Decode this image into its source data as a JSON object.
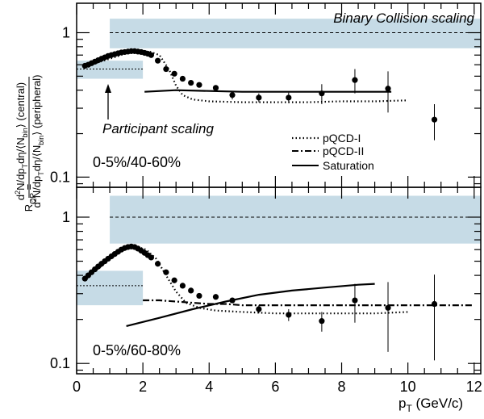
{
  "chart_data": [
    {
      "type": "scatter",
      "panel_label": "0-5%/40-60%",
      "xlim": [
        0,
        12.2
      ],
      "ylim": [
        0.085,
        1.6
      ],
      "yscale": "log",
      "yticks": [
        {
          "v": 0.1,
          "label": "0.1"
        },
        {
          "v": 1,
          "label": "1"
        }
      ],
      "binary_band": {
        "x": [
          1.0,
          12.2
        ],
        "y": [
          0.78,
          1.25
        ],
        "line": 1.0,
        "color": "#c6dbe6"
      },
      "participant_band": {
        "x": [
          0.15,
          2.0
        ],
        "y": [
          0.48,
          0.64
        ],
        "line": 0.56,
        "color": "#c6dbe6"
      },
      "annotations": {
        "binary": "Binary Collision scaling",
        "participant": "Participant scaling"
      },
      "legend": [
        "pQCD-I",
        "pQCD-II",
        "Saturation"
      ],
      "points": [
        {
          "x": 0.25,
          "y": 0.59
        },
        {
          "x": 0.35,
          "y": 0.6
        },
        {
          "x": 0.45,
          "y": 0.615
        },
        {
          "x": 0.55,
          "y": 0.63
        },
        {
          "x": 0.65,
          "y": 0.645
        },
        {
          "x": 0.75,
          "y": 0.66
        },
        {
          "x": 0.85,
          "y": 0.675
        },
        {
          "x": 0.95,
          "y": 0.69
        },
        {
          "x": 1.05,
          "y": 0.7
        },
        {
          "x": 1.15,
          "y": 0.71
        },
        {
          "x": 1.25,
          "y": 0.72
        },
        {
          "x": 1.35,
          "y": 0.73
        },
        {
          "x": 1.45,
          "y": 0.735
        },
        {
          "x": 1.55,
          "y": 0.74
        },
        {
          "x": 1.65,
          "y": 0.745
        },
        {
          "x": 1.75,
          "y": 0.745
        },
        {
          "x": 1.85,
          "y": 0.74
        },
        {
          "x": 1.95,
          "y": 0.735
        },
        {
          "x": 2.05,
          "y": 0.725
        },
        {
          "x": 2.15,
          "y": 0.715
        },
        {
          "x": 2.25,
          "y": 0.7
        },
        {
          "x": 2.45,
          "y": 0.64
        },
        {
          "x": 2.7,
          "y": 0.56
        },
        {
          "x": 2.95,
          "y": 0.52
        },
        {
          "x": 3.2,
          "y": 0.48
        },
        {
          "x": 3.45,
          "y": 0.45
        },
        {
          "x": 3.7,
          "y": 0.435
        },
        {
          "x": 4.2,
          "y": 0.415
        },
        {
          "x": 4.7,
          "y": 0.37,
          "err": 0.025
        },
        {
          "x": 5.5,
          "y": 0.355,
          "err": 0.025
        },
        {
          "x": 6.4,
          "y": 0.355,
          "err": 0.03
        },
        {
          "x": 7.4,
          "y": 0.38,
          "err": 0.06
        },
        {
          "x": 8.4,
          "y": 0.47,
          "err": 0.09
        },
        {
          "x": 9.4,
          "y": 0.41,
          "err": 0.13
        },
        {
          "x": 10.8,
          "y": 0.25,
          "err": 0.07
        }
      ],
      "pqcd1": {
        "x": [
          0.3,
          1.0,
          1.5,
          1.9,
          2.2,
          2.5,
          2.8,
          3.0,
          3.2,
          3.5,
          4.0,
          5.0,
          6.0,
          7.0,
          8.0,
          9.0,
          10.0
        ],
        "y": [
          0.59,
          0.66,
          0.72,
          0.74,
          0.74,
          0.7,
          0.55,
          0.43,
          0.37,
          0.345,
          0.335,
          0.33,
          0.33,
          0.33,
          0.335,
          0.335,
          0.34
        ]
      },
      "saturation": {
        "x": [
          2.05,
          3.0,
          4.0,
          5.0,
          6.0,
          7.0,
          8.0,
          9.0,
          9.5
        ],
        "y": [
          0.39,
          0.4,
          0.395,
          0.39,
          0.39,
          0.39,
          0.39,
          0.39,
          0.39
        ]
      }
    },
    {
      "type": "scatter",
      "panel_label": "0-5%/60-80%",
      "xlim": [
        0,
        12.2
      ],
      "ylim": [
        0.085,
        1.6
      ],
      "yscale": "log",
      "yticks": [
        {
          "v": 0.1,
          "label": "0.1"
        },
        {
          "v": 1,
          "label": "1"
        }
      ],
      "xticks": [
        0,
        2,
        4,
        6,
        8,
        10,
        12
      ],
      "xlabel": "p_T (GeV/c)",
      "binary_band": {
        "x": [
          1.0,
          12.2
        ],
        "y": [
          0.66,
          1.4
        ],
        "line": 1.0,
        "color": "#c6dbe6"
      },
      "participant_band": {
        "x": [
          0.15,
          2.0
        ],
        "y": [
          0.25,
          0.43
        ],
        "line": 0.34,
        "color": "#c6dbe6"
      },
      "points": [
        {
          "x": 0.25,
          "y": 0.38
        },
        {
          "x": 0.35,
          "y": 0.4
        },
        {
          "x": 0.45,
          "y": 0.42
        },
        {
          "x": 0.55,
          "y": 0.44
        },
        {
          "x": 0.65,
          "y": 0.46
        },
        {
          "x": 0.75,
          "y": 0.48
        },
        {
          "x": 0.85,
          "y": 0.5
        },
        {
          "x": 0.95,
          "y": 0.52
        },
        {
          "x": 1.05,
          "y": 0.54
        },
        {
          "x": 1.15,
          "y": 0.56
        },
        {
          "x": 1.25,
          "y": 0.58
        },
        {
          "x": 1.35,
          "y": 0.6
        },
        {
          "x": 1.45,
          "y": 0.615
        },
        {
          "x": 1.55,
          "y": 0.625
        },
        {
          "x": 1.65,
          "y": 0.63
        },
        {
          "x": 1.75,
          "y": 0.625
        },
        {
          "x": 1.85,
          "y": 0.61
        },
        {
          "x": 1.95,
          "y": 0.59
        },
        {
          "x": 2.05,
          "y": 0.57
        },
        {
          "x": 2.15,
          "y": 0.55
        },
        {
          "x": 2.25,
          "y": 0.53
        },
        {
          "x": 2.45,
          "y": 0.48
        },
        {
          "x": 2.7,
          "y": 0.42
        },
        {
          "x": 2.95,
          "y": 0.37
        },
        {
          "x": 3.2,
          "y": 0.34
        },
        {
          "x": 3.45,
          "y": 0.315
        },
        {
          "x": 3.7,
          "y": 0.29
        },
        {
          "x": 4.2,
          "y": 0.285
        },
        {
          "x": 4.7,
          "y": 0.27,
          "err": 0.012
        },
        {
          "x": 5.5,
          "y": 0.235,
          "err": 0.015
        },
        {
          "x": 6.4,
          "y": 0.215,
          "err": 0.02
        },
        {
          "x": 7.4,
          "y": 0.195,
          "err": 0.03
        },
        {
          "x": 8.4,
          "y": 0.27,
          "err": 0.08
        },
        {
          "x": 9.4,
          "y": 0.24,
          "err": 0.12
        },
        {
          "x": 10.8,
          "y": 0.255,
          "err": 0.15
        }
      ],
      "pqcd1": {
        "x": [
          0.3,
          1.0,
          1.5,
          1.8,
          2.1,
          2.4,
          2.7,
          3.0,
          3.3,
          3.7,
          4.2,
          5.0,
          6.0,
          7.0,
          8.0,
          9.0,
          10.0
        ],
        "y": [
          0.38,
          0.52,
          0.62,
          0.63,
          0.6,
          0.52,
          0.4,
          0.31,
          0.26,
          0.24,
          0.23,
          0.225,
          0.22,
          0.22,
          0.22,
          0.22,
          0.225
        ]
      },
      "pqcd2": {
        "x": [
          2.0,
          2.5,
          3.0,
          3.5,
          4.0,
          4.5,
          5.0,
          6.0,
          7.0,
          8.0,
          9.0,
          10.0,
          11.0,
          12.0
        ],
        "y": [
          0.27,
          0.27,
          0.265,
          0.26,
          0.255,
          0.255,
          0.25,
          0.25,
          0.25,
          0.25,
          0.25,
          0.25,
          0.25,
          0.25
        ]
      },
      "saturation": {
        "x": [
          1.5,
          2.5,
          3.5,
          4.5,
          5.5,
          6.5,
          7.5,
          8.5,
          9.0
        ],
        "y": [
          0.18,
          0.205,
          0.235,
          0.265,
          0.295,
          0.315,
          0.33,
          0.345,
          0.35
        ]
      }
    }
  ],
  "y_axis_title": "R_CP = d²N/dp_T dη/⟨N_bin⟩ (central) / d²N/dp_T dη/⟨N_bin⟩ (peripheral)"
}
